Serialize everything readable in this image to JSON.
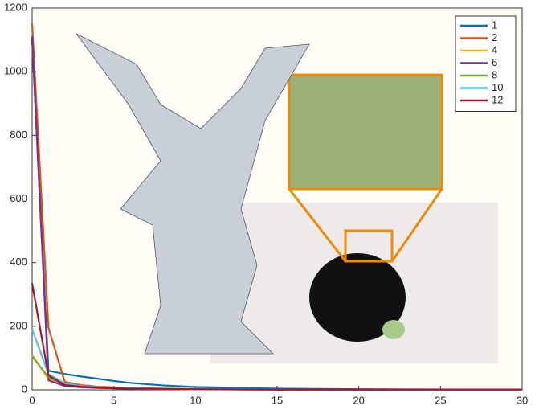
{
  "chart_data": {
    "type": "line",
    "x": [
      0,
      1,
      2,
      3,
      4,
      5,
      6,
      8,
      10,
      15,
      20,
      25,
      30
    ],
    "series": [
      {
        "name": "1",
        "color": "#0072bd",
        "values": [
          1100,
          60,
          50,
          42,
          35,
          28,
          22,
          14,
          9,
          4,
          2,
          1,
          1
        ]
      },
      {
        "name": "2",
        "color": "#d95319",
        "values": [
          1150,
          195,
          25,
          15,
          10,
          8,
          6,
          4,
          3,
          2,
          1,
          1,
          1
        ]
      },
      {
        "name": "4",
        "color": "#edb120",
        "values": [
          110,
          35,
          15,
          10,
          7,
          5,
          4,
          3,
          2,
          1,
          1,
          1,
          1
        ]
      },
      {
        "name": "6",
        "color": "#7e2f8e",
        "values": [
          1110,
          30,
          12,
          8,
          6,
          5,
          4,
          3,
          2,
          1,
          1,
          1,
          1
        ]
      },
      {
        "name": "8",
        "color": "#77ac30",
        "values": [
          105,
          40,
          18,
          11,
          8,
          6,
          5,
          3,
          2,
          1,
          1,
          1,
          1
        ]
      },
      {
        "name": "10",
        "color": "#4dbeee",
        "values": [
          190,
          50,
          20,
          12,
          8,
          6,
          5,
          3,
          2,
          1,
          1,
          1,
          1
        ]
      },
      {
        "name": "12",
        "color": "#a2142f",
        "values": [
          335,
          45,
          15,
          10,
          7,
          5,
          4,
          3,
          2,
          1,
          1,
          1,
          1
        ]
      }
    ],
    "xlim": [
      0,
      30
    ],
    "xticks": [
      0,
      5,
      10,
      15,
      20,
      25,
      30
    ],
    "ylim": [
      0,
      1200
    ],
    "yticks": [
      0,
      200,
      400,
      600,
      800,
      1000,
      1200
    ],
    "legend": "top-right"
  }
}
